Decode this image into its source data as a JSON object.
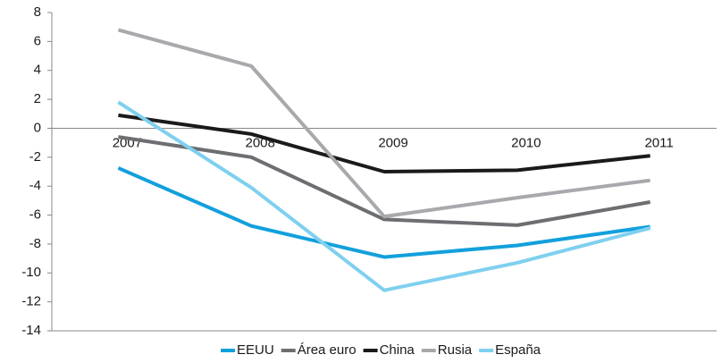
{
  "chart_data": {
    "type": "line",
    "categories": [
      "2007",
      "2008",
      "2009",
      "2010",
      "2011"
    ],
    "series": [
      {
        "name": "EEUU",
        "color": "#12a0dc",
        "values": [
          -2.75,
          -6.75,
          -8.9,
          -8.1,
          -6.8
        ]
      },
      {
        "name": "Área euro",
        "color": "#6d6e71",
        "values": [
          -0.6,
          -2.0,
          -6.3,
          -6.7,
          -5.1
        ]
      },
      {
        "name": "China",
        "color": "#1a1a1a",
        "values": [
          0.9,
          -0.4,
          -3.0,
          -2.9,
          -1.9
        ]
      },
      {
        "name": "Rusia",
        "color": "#a7a9ac",
        "values": [
          6.8,
          4.3,
          -6.1,
          -4.8,
          -3.6
        ]
      },
      {
        "name": "España",
        "color": "#7fd0ef",
        "values": [
          1.8,
          -4.1,
          -11.2,
          -9.3,
          -6.9
        ]
      }
    ],
    "ylim": [
      -14,
      8
    ],
    "yticks": [
      -14,
      -12,
      -10,
      -8,
      -6,
      -4,
      -2,
      0,
      2,
      4,
      6,
      8
    ],
    "legend": "bottom"
  }
}
